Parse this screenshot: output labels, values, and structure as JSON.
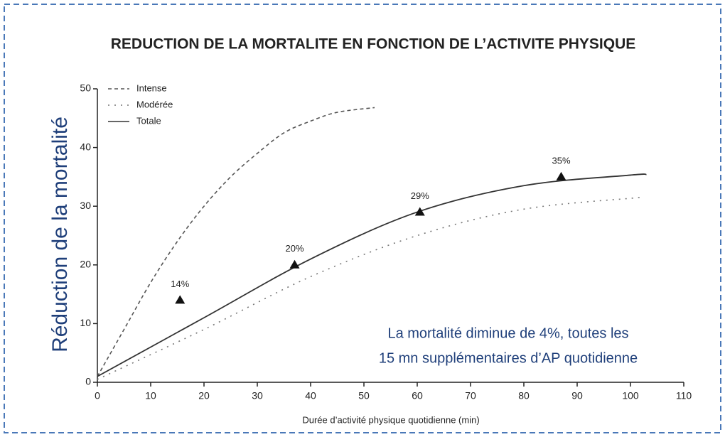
{
  "chart_data": {
    "type": "line",
    "title": "REDUCTION DE LA MORTALITE EN FONCTION DE L’ACTIVITE PHYSIQUE",
    "y_label": "Réduction de la mortalité",
    "x_label": "Durée d’activité physique quotidienne (min)",
    "annotation": [
      "La mortalité  diminue de 4%, toutes les",
      "15 mn supplémentaires d’AP quotidienne"
    ],
    "xlim": [
      0,
      110
    ],
    "xticks": [
      0,
      10,
      20,
      30,
      40,
      50,
      60,
      70,
      80,
      90,
      100,
      110
    ],
    "ylim": [
      0,
      50
    ],
    "yticks": [
      0,
      10,
      20,
      30,
      40,
      50
    ],
    "legend": "top-left",
    "series": [
      {
        "name": "Intense",
        "color": "#555555",
        "dash": "dashed",
        "x": [
          0,
          5,
          10,
          15,
          20,
          25,
          30,
          35,
          40,
          45,
          52
        ],
        "values": [
          1,
          9,
          17,
          24,
          30,
          35,
          39,
          42.5,
          44.5,
          46,
          46.8
        ]
      },
      {
        "name": "Modérée",
        "color": "#777777",
        "dash": "dotted",
        "x": [
          0,
          20,
          40,
          60,
          80,
          102
        ],
        "values": [
          0.5,
          9,
          18,
          25,
          29.5,
          31.5
        ]
      },
      {
        "name": "Totale",
        "color": "#333333",
        "dash": "solid",
        "x": [
          0,
          20,
          40,
          60,
          80,
          100,
          103
        ],
        "values": [
          1,
          11,
          21,
          29,
          33.5,
          35.3,
          35.4
        ]
      }
    ],
    "markers": {
      "color": "#111111",
      "x": [
        15.5,
        37,
        60.5,
        87
      ],
      "values": [
        14,
        20,
        29,
        35
      ],
      "value_labels": [
        "14%",
        "20%",
        "29%",
        "35%"
      ]
    }
  }
}
